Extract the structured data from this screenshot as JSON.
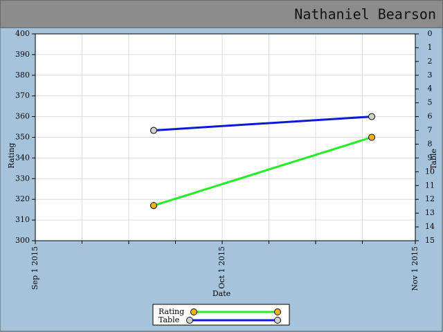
{
  "header": {
    "title": "Nathaniel Bearson"
  },
  "chart_data": {
    "type": "line",
    "x_label": "Date",
    "y_label": "Rating",
    "y2_label": "Table",
    "xlim": [
      "2015-09-01",
      "2015-11-01"
    ],
    "xticks": [
      {
        "value": "2015-09-01",
        "label": "Sep 1 2015"
      },
      {
        "value": "2015-09-08T12:00",
        "label": null
      },
      {
        "value": "2015-09-16",
        "label": null
      },
      {
        "value": "2015-09-23T12:00",
        "label": null
      },
      {
        "value": "2015-10-01",
        "label": "Oct 1 2015"
      },
      {
        "value": "2015-10-08T12:00",
        "label": null
      },
      {
        "value": "2015-10-16",
        "label": null
      },
      {
        "value": "2015-10-23T12:00",
        "label": null
      },
      {
        "value": "2015-11-01",
        "label": "Nov 1 2015"
      }
    ],
    "ylim": [
      300,
      400
    ],
    "yticks": [
      300,
      310,
      320,
      330,
      340,
      350,
      360,
      370,
      380,
      390,
      400
    ],
    "y2lim": [
      15,
      0
    ],
    "y2ticks": [
      0,
      1,
      2,
      3,
      4,
      5,
      6,
      7,
      8,
      9,
      10,
      11,
      12,
      13,
      14,
      15
    ],
    "grid": true,
    "series": [
      {
        "name": "Rating",
        "color": "#22ee22",
        "marker_color": "#f5b01a",
        "x": [
          "2015-09-20",
          "2015-10-25"
        ],
        "values": [
          317,
          350
        ]
      },
      {
        "name": "Table",
        "color": "#0a1ad8",
        "marker_color": "#d0d0d0",
        "axis": "y2",
        "x": [
          "2015-09-20",
          "2015-10-25"
        ],
        "values": [
          7,
          6
        ]
      }
    ],
    "legend": "bottom"
  }
}
